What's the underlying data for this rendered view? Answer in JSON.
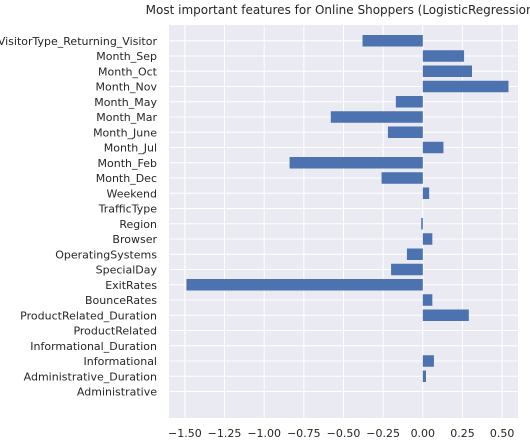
{
  "chart_data": {
    "type": "bar",
    "orientation": "horizontal",
    "title": "Most important features for Online Shoppers (LogisticRegression)",
    "xlabel": "",
    "ylabel": "",
    "xlim": [
      -1.6,
      0.6
    ],
    "xticks": [
      -1.5,
      -1.25,
      -1.0,
      -0.75,
      -0.5,
      -0.25,
      0.0,
      0.25,
      0.5
    ],
    "xtick_labels": [
      "−1.50",
      "−1.25",
      "−1.00",
      "−0.75",
      "−0.50",
      "−0.25",
      "0.00",
      "0.25",
      "0.50"
    ],
    "grid": true,
    "colors": {
      "bar": "#4c72b0",
      "plot_bg": "#eaeaf2",
      "grid": "#ffffff",
      "text": "#262626"
    },
    "categories": [
      "VisitorType_Returning_Visitor",
      "Month_Sep",
      "Month_Oct",
      "Month_Nov",
      "Month_May",
      "Month_Mar",
      "Month_June",
      "Month_Jul",
      "Month_Feb",
      "Month_Dec",
      "Weekend",
      "TrafficType",
      "Region",
      "Browser",
      "OperatingSystems",
      "SpecialDay",
      "ExitRates",
      "BounceRates",
      "ProductRelated_Duration",
      "ProductRelated",
      "Informational_Duration",
      "Informational",
      "Administrative_Duration",
      "Administrative"
    ],
    "values": [
      -0.38,
      0.26,
      0.31,
      0.54,
      -0.17,
      -0.58,
      -0.22,
      0.13,
      -0.84,
      -0.26,
      0.04,
      0.0,
      -0.01,
      0.06,
      -0.1,
      -0.2,
      -1.49,
      0.06,
      0.29,
      0.0,
      0.0,
      0.07,
      0.02,
      0.0
    ]
  }
}
